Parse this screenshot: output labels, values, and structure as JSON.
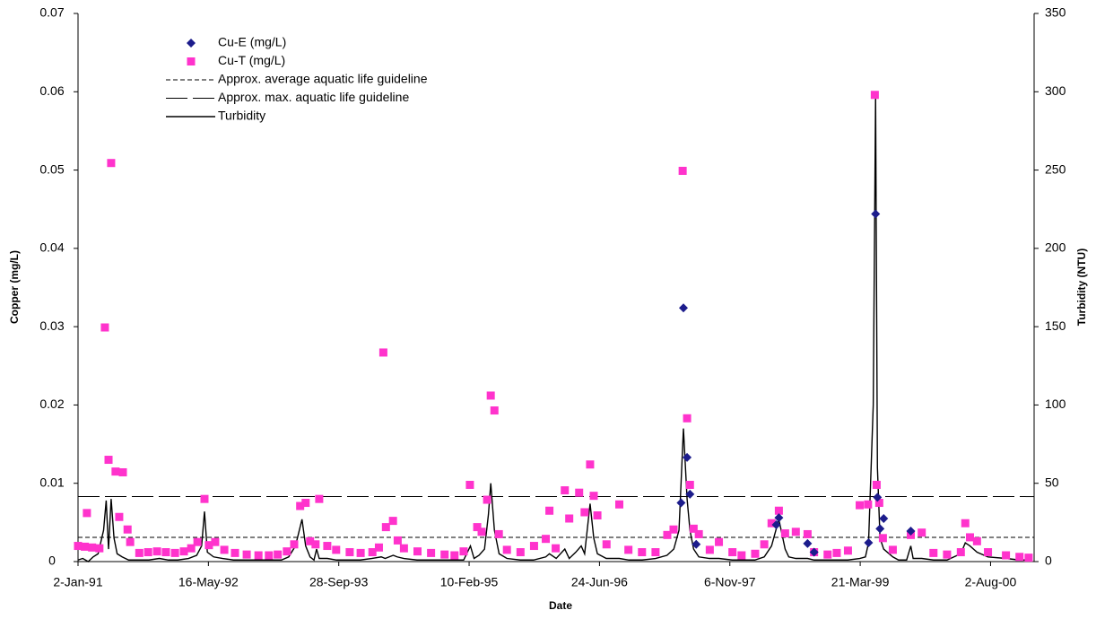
{
  "chart_data": {
    "type": "scatter",
    "xlabel": "Date",
    "ylabel": "Copper (mg/L)",
    "y2label": "Turbidity (NTU)",
    "xlim": [
      "1991-01-02",
      "2001-01-16"
    ],
    "xticks": [
      {
        "value": "1991-01-02",
        "label": "2-Jan-91"
      },
      {
        "value": "1992-05-16",
        "label": "16-May-92"
      },
      {
        "value": "1993-09-28",
        "label": "28-Sep-93"
      },
      {
        "value": "1995-02-10",
        "label": "10-Feb-95"
      },
      {
        "value": "1996-06-24",
        "label": "24-Jun-96"
      },
      {
        "value": "1997-11-06",
        "label": "6-Nov-97"
      },
      {
        "value": "1999-03-21",
        "label": "21-Mar-99"
      },
      {
        "value": "2000-08-02",
        "label": "2-Aug-00"
      }
    ],
    "ylim": [
      0,
      0.07
    ],
    "yticks": [
      0,
      0.01,
      0.02,
      0.03,
      0.04,
      0.05,
      0.06,
      0.07
    ],
    "y2lim": [
      0,
      350
    ],
    "y2ticks": [
      0,
      50,
      100,
      150,
      200,
      250,
      300,
      350
    ],
    "legend": "upper left",
    "series": [
      {
        "name": "Cu-E (mg/L)",
        "color": "#1c1c8c",
        "marker": "diamond",
        "x": [
          "1997-05-03",
          "1997-05-12",
          "1997-05-26",
          "1997-06-06",
          "1997-06-30",
          "1998-05-03",
          "1998-05-13",
          "1998-08-31",
          "1998-09-25",
          "1999-04-22",
          "1999-05-19",
          "1999-05-26",
          "1999-06-05",
          "1999-06-19",
          "1999-10-01"
        ],
        "values": [
          0.0075,
          0.0324,
          0.0133,
          0.0086,
          0.0022,
          0.0047,
          0.0056,
          0.0023,
          0.0012,
          0.0024,
          0.0444,
          0.0082,
          0.0042,
          0.0055,
          0.0039
        ]
      },
      {
        "name": "Cu-T (mg/L)",
        "color": "#ff33cc",
        "marker": "square",
        "x": [
          "1991-01-02",
          "1991-01-28",
          "1991-02-05",
          "1991-02-25",
          "1991-03-25",
          "1991-04-15",
          "1991-04-29",
          "1991-05-09",
          "1991-05-26",
          "1991-06-09",
          "1991-06-23",
          "1991-07-11",
          "1991-07-21",
          "1991-08-25",
          "1991-09-28",
          "1991-11-01",
          "1991-12-05",
          "1992-01-09",
          "1992-02-12",
          "1992-03-11",
          "1992-04-04",
          "1992-05-01",
          "1992-05-18",
          "1992-06-11",
          "1992-07-16",
          "1992-08-26",
          "1992-10-10",
          "1992-11-24",
          "1993-01-03",
          "1993-02-06",
          "1993-03-13",
          "1993-04-10",
          "1993-05-03",
          "1993-05-24",
          "1993-06-10",
          "1993-07-01",
          "1993-07-15",
          "1993-08-15",
          "1993-09-18",
          "1993-11-09",
          "1993-12-21",
          "1994-02-04",
          "1994-03-01",
          "1994-03-18",
          "1994-03-28",
          "1994-04-24",
          "1994-05-12",
          "1994-06-05",
          "1994-07-27",
          "1994-09-17",
          "1994-11-08",
          "1994-12-16",
          "1995-01-20",
          "1995-02-13",
          "1995-03-13",
          "1995-03-30",
          "1995-04-20",
          "1995-05-04",
          "1995-05-18",
          "1995-06-04",
          "1995-07-05",
          "1995-08-26",
          "1995-10-17",
          "1995-12-01",
          "1995-12-15",
          "1996-01-08",
          "1996-02-12",
          "1996-02-29",
          "1996-04-07",
          "1996-04-28",
          "1996-05-19",
          "1996-06-02",
          "1996-06-16",
          "1996-07-21",
          "1996-09-08",
          "1996-10-13",
          "1996-12-04",
          "1997-01-25",
          "1997-03-11",
          "1997-04-04",
          "1997-05-09",
          "1997-05-26",
          "1997-06-06",
          "1997-06-20",
          "1997-07-10",
          "1997-08-21",
          "1997-09-25",
          "1997-11-16",
          "1997-12-21",
          "1998-02-11",
          "1998-03-18",
          "1998-04-15",
          "1998-05-13",
          "1998-06-06",
          "1998-07-17",
          "1998-08-31",
          "1998-09-25",
          "1998-11-16",
          "1998-12-21",
          "1999-02-02",
          "1999-03-19",
          "1999-04-20",
          "1999-05-16",
          "1999-05-23",
          "1999-06-02",
          "1999-06-16",
          "1999-07-24",
          "1999-10-01",
          "1999-11-12",
          "1999-12-27",
          "2000-02-17",
          "2000-04-10",
          "2000-04-27",
          "2000-05-15",
          "2000-06-11",
          "2000-07-23",
          "2000-09-30",
          "2000-11-21",
          "2000-12-26"
        ],
        "values": [
          0.002,
          0.0019,
          0.0062,
          0.0018,
          0.0017,
          0.0299,
          0.013,
          0.0509,
          0.0115,
          0.0057,
          0.0114,
          0.0041,
          0.0025,
          0.0011,
          0.0012,
          0.0013,
          0.0012,
          0.0011,
          0.0013,
          0.0017,
          0.0025,
          0.008,
          0.0021,
          0.0025,
          0.0015,
          0.0011,
          0.0009,
          0.0008,
          0.0008,
          0.0009,
          0.0013,
          0.0022,
          0.0071,
          0.0075,
          0.0026,
          0.0022,
          0.008,
          0.002,
          0.0015,
          0.0012,
          0.0011,
          0.0012,
          0.0018,
          0.0267,
          0.0044,
          0.0052,
          0.0027,
          0.0017,
          0.0013,
          0.0011,
          0.0009,
          0.0008,
          0.0013,
          0.0098,
          0.0044,
          0.0038,
          0.0079,
          0.0212,
          0.0193,
          0.0035,
          0.0015,
          0.0012,
          0.002,
          0.0029,
          0.0065,
          0.0017,
          0.0091,
          0.0055,
          0.0088,
          0.0063,
          0.0124,
          0.0084,
          0.0059,
          0.0022,
          0.0073,
          0.0015,
          0.0012,
          0.0012,
          0.0034,
          0.0041,
          0.0499,
          0.0183,
          0.0098,
          0.0042,
          0.0035,
          0.0015,
          0.0025,
          0.0012,
          0.0008,
          0.001,
          0.0022,
          0.0049,
          0.0065,
          0.0036,
          0.0038,
          0.0035,
          0.0012,
          0.0009,
          0.0011,
          0.0014,
          0.0072,
          0.0073,
          0.0596,
          0.0098,
          0.0075,
          0.003,
          0.0015,
          0.0034,
          0.0037,
          0.0011,
          0.0009,
          0.0012,
          0.0049,
          0.0031,
          0.0026,
          0.0012,
          0.0008,
          0.0006,
          0.0005
        ]
      },
      {
        "name": "Turbidity",
        "color": "#000000",
        "axis": "y2",
        "x": [
          "1991-01-02",
          "1991-01-20",
          "1991-02-10",
          "1991-03-01",
          "1991-03-20",
          "1991-04-10",
          "1991-04-20",
          "1991-04-29",
          "1991-05-09",
          "1991-05-20",
          "1991-06-01",
          "1991-06-20",
          "1991-07-15",
          "1991-08-25",
          "1991-10-01",
          "1991-11-10",
          "1991-12-15",
          "1992-01-20",
          "1992-03-01",
          "1992-04-01",
          "1992-04-20",
          "1992-05-01",
          "1992-05-12",
          "1992-06-05",
          "1992-07-10",
          "1992-08-20",
          "1992-10-10",
          "1992-11-24",
          "1993-01-05",
          "1993-02-20",
          "1993-03-20",
          "1993-04-15",
          "1993-05-10",
          "1993-05-24",
          "1993-06-10",
          "1993-06-25",
          "1993-07-05",
          "1993-07-15",
          "1993-08-15",
          "1993-09-20",
          "1993-11-10",
          "1993-12-20",
          "1994-02-01",
          "1994-03-10",
          "1994-03-25",
          "1994-04-25",
          "1994-05-10",
          "1994-06-05",
          "1994-07-25",
          "1994-09-15",
          "1994-11-10",
          "1994-12-20",
          "1995-01-20",
          "1995-02-15",
          "1995-03-01",
          "1995-03-20",
          "1995-04-10",
          "1995-04-25",
          "1995-05-04",
          "1995-05-18",
          "1995-06-05",
          "1995-07-05",
          "1995-08-25",
          "1995-10-15",
          "1995-12-01",
          "1995-12-15",
          "1996-01-10",
          "1996-02-12",
          "1996-02-29",
          "1996-03-25",
          "1996-04-15",
          "1996-04-28",
          "1996-05-19",
          "1996-06-02",
          "1996-06-16",
          "1996-07-20",
          "1996-09-08",
          "1996-10-15",
          "1996-12-05",
          "1997-01-25",
          "1997-03-10",
          "1997-04-05",
          "1997-04-25",
          "1997-05-12",
          "1997-05-26",
          "1997-06-06",
          "1997-06-20",
          "1997-07-10",
          "1997-08-20",
          "1997-09-25",
          "1997-11-15",
          "1997-12-20",
          "1998-02-10",
          "1998-03-18",
          "1998-04-15",
          "1998-05-13",
          "1998-06-06",
          "1998-06-20",
          "1998-07-17",
          "1998-08-31",
          "1998-09-25",
          "1998-11-16",
          "1998-12-21",
          "1999-02-02",
          "1999-03-19",
          "1999-04-10",
          "1999-04-22",
          "1999-05-10",
          "1999-05-19",
          "1999-05-26",
          "1999-06-05",
          "1999-06-19",
          "1999-07-24",
          "1999-08-15",
          "1999-09-15",
          "1999-10-01",
          "1999-10-10",
          "1999-11-12",
          "1999-12-27",
          "2000-02-17",
          "2000-04-10",
          "2000-04-27",
          "2000-05-15",
          "2000-06-11",
          "2000-07-23",
          "2000-09-30",
          "2000-11-21",
          "2000-12-26"
        ],
        "values": [
          1,
          2,
          0,
          3,
          5,
          20,
          39,
          8,
          40,
          15,
          5,
          3,
          1,
          1,
          1,
          2,
          1,
          1,
          2,
          4,
          10,
          32,
          6,
          3,
          2,
          1,
          1,
          1,
          1,
          1,
          3,
          10,
          27,
          10,
          3,
          1,
          8,
          2,
          2,
          1,
          1,
          1,
          2,
          3,
          2,
          4,
          3,
          2,
          1,
          1,
          1,
          1,
          1,
          10,
          2,
          4,
          8,
          30,
          50,
          20,
          5,
          2,
          1,
          1,
          3,
          5,
          2,
          8,
          2,
          6,
          10,
          5,
          37,
          15,
          5,
          2,
          2,
          1,
          1,
          2,
          4,
          8,
          20,
          85,
          40,
          20,
          8,
          3,
          2,
          2,
          1,
          1,
          1,
          3,
          10,
          27,
          8,
          3,
          2,
          2,
          1,
          1,
          1,
          1,
          2,
          3,
          12,
          100,
          298,
          60,
          15,
          8,
          3,
          1,
          1,
          10,
          2,
          2,
          1,
          1,
          5,
          12,
          10,
          6,
          3,
          2,
          1,
          1
        ]
      }
    ],
    "reference_lines": [
      {
        "name": "Approx. average aquatic life guideline",
        "value": 0.0031,
        "color": "#000000",
        "style": "dashed"
      },
      {
        "name": "Approx. max. aquatic life guideline",
        "value": 0.0083,
        "color": "#000000",
        "style": "long-dashed"
      }
    ]
  }
}
